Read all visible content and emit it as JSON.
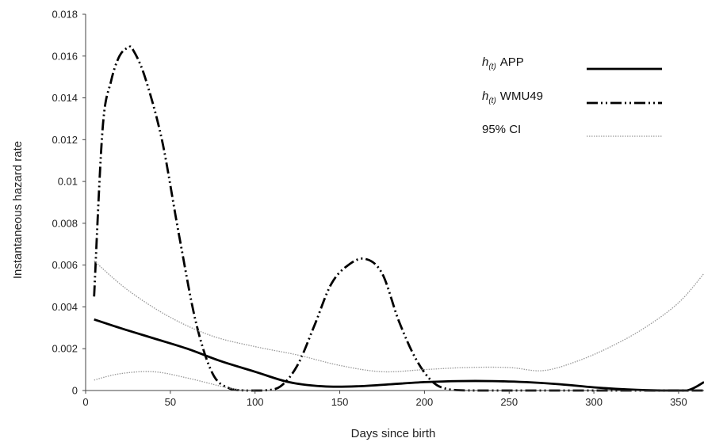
{
  "chart_data": {
    "type": "line",
    "xlabel": "Days since birth",
    "ylabel": "Instantaneous hazard rate",
    "xlim": [
      0,
      365
    ],
    "ylim": [
      0,
      0.018
    ],
    "xticks": [
      0,
      50,
      100,
      150,
      200,
      250,
      300,
      350
    ],
    "yticks": [
      0,
      0.002,
      0.004,
      0.006,
      0.008,
      0.01,
      0.012,
      0.014,
      0.016,
      0.018
    ],
    "ytick_labels": [
      "0",
      "0.002",
      "0.004",
      "0.006",
      "0.008",
      "0.01",
      "0.012",
      "0.014",
      "0.016",
      "0.018"
    ],
    "grid": false,
    "legend_position": "top-right",
    "series": [
      {
        "name": "APP",
        "legend_prefix": "h",
        "legend_subscript": "(t)",
        "style": "solid",
        "color": "#000000",
        "x": [
          5,
          20,
          40,
          60,
          80,
          100,
          120,
          140,
          160,
          180,
          200,
          220,
          240,
          260,
          280,
          300,
          320,
          340,
          355,
          365
        ],
        "y": [
          0.0034,
          0.003,
          0.0025,
          0.002,
          0.0014,
          0.0009,
          0.0004,
          0.0002,
          0.0002,
          0.0003,
          0.0004,
          0.00045,
          0.00045,
          0.0004,
          0.0003,
          0.00015,
          5e-05,
          0.0,
          0.0,
          0.0004
        ]
      },
      {
        "name": "WMU49",
        "legend_prefix": "h",
        "legend_subscript": "(t)",
        "style": "dash-dot-dot",
        "color": "#000000",
        "x": [
          5,
          10,
          15,
          20,
          25,
          28,
          35,
          45,
          55,
          65,
          75,
          85,
          95,
          105,
          115,
          125,
          135,
          145,
          155,
          165,
          175,
          185,
          195,
          205,
          215,
          230,
          250,
          270,
          290,
          310,
          330,
          340,
          350,
          360,
          365
        ],
        "y": [
          0.0045,
          0.0125,
          0.0148,
          0.016,
          0.0164,
          0.0163,
          0.015,
          0.012,
          0.0075,
          0.0033,
          0.0008,
          0.0001,
          0.0,
          0.0,
          0.0002,
          0.0012,
          0.0031,
          0.0051,
          0.006,
          0.0063,
          0.0056,
          0.0033,
          0.0015,
          0.0004,
          5e-05,
          0.0,
          0.0,
          0.0,
          0.0,
          0.0,
          0.0,
          0.0,
          0.0,
          0.0,
          0.0
        ]
      },
      {
        "name": "95% CI",
        "style": "dotted",
        "color": "#999999",
        "upper": {
          "x": [
            5,
            25,
            50,
            75,
            100,
            125,
            150,
            175,
            200,
            225,
            250,
            270,
            290,
            310,
            330,
            350,
            365
          ],
          "y": [
            0.0062,
            0.0048,
            0.0035,
            0.0026,
            0.0021,
            0.0017,
            0.0012,
            0.0009,
            0.001,
            0.0011,
            0.0011,
            0.00095,
            0.0014,
            0.0021,
            0.003,
            0.0042,
            0.0056
          ]
        },
        "lower": {
          "x": [
            5,
            20,
            40,
            60,
            80,
            90,
            100
          ],
          "y": [
            0.0005,
            0.0008,
            0.0009,
            0.0006,
            0.0002,
            5e-05,
            0.0
          ]
        }
      }
    ]
  }
}
